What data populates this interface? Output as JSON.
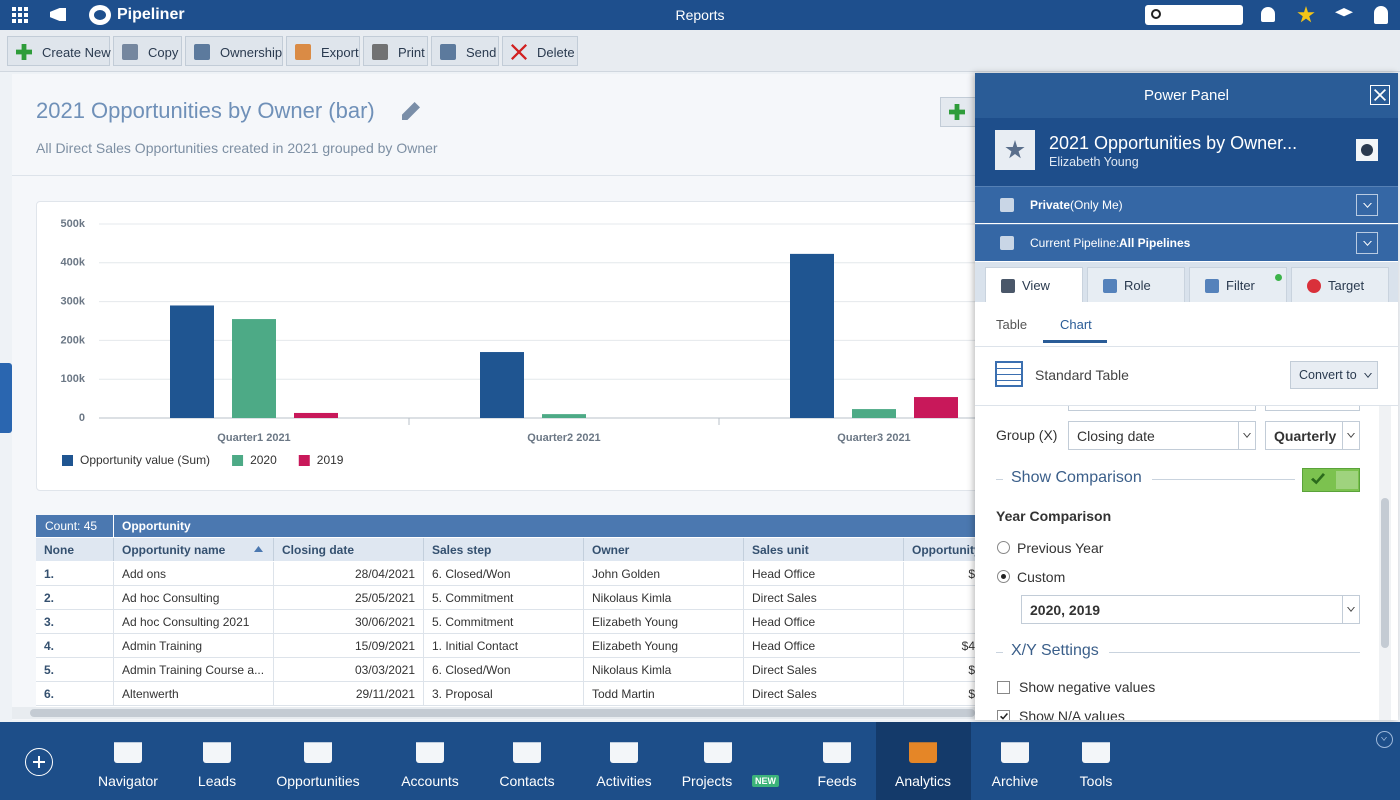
{
  "top_bar": {
    "app": "Pipeliner",
    "title": "Reports"
  },
  "toolbar": [
    "Create New",
    "Copy",
    "Ownership",
    "Export",
    "Print",
    "Send",
    "Delete"
  ],
  "report": {
    "title": "2021 Opportunities by Owner (bar)",
    "subtitle": "All Direct Sales Opportunities created in 2021 grouped by Owner"
  },
  "chart": {
    "type": "bar",
    "categories": [
      "Quarter1 2021",
      "Quarter2 2021",
      "Quarter3 2021"
    ],
    "series": [
      {
        "name": "Opportunity value (Sum)",
        "color": "#1f5591",
        "values": [
          290000,
          170000,
          423000
        ]
      },
      {
        "name": "2020",
        "color": "#4daa86",
        "values": [
          255000,
          10000,
          23000
        ]
      },
      {
        "name": "2019",
        "color": "#c8185a",
        "values": [
          13000,
          0,
          54000
        ]
      }
    ],
    "ylim": [
      0,
      500000
    ],
    "yticks": [
      0,
      {
        "value": 100000,
        "label": "100k"
      },
      {
        "value": 200000,
        "label": "200k"
      },
      {
        "value": 300000,
        "label": "300k"
      },
      {
        "value": 400000,
        "label": "400k"
      },
      {
        "value": 500000,
        "label": "500k"
      }
    ],
    "grid": true,
    "legend": "bottom-left"
  },
  "table": {
    "count": "Count: 45",
    "group": "Opportunity",
    "columns": [
      "None",
      "Opportunity name",
      "Closing date",
      "Sales step",
      "Owner",
      "Sales unit",
      "Opportunity"
    ],
    "rows": [
      [
        "1.",
        "Add ons",
        "28/04/2021",
        "6. Closed/Won",
        "John Golden",
        "Head Office",
        "$"
      ],
      [
        "2.",
        "Ad hoc Consulting",
        "25/05/2021",
        "5. Commitment",
        "Nikolaus Kimla",
        "Direct Sales"
      ],
      [
        "3.",
        "Ad hoc Consulting 2021",
        "30/06/2021",
        "5. Commitment",
        "Elizabeth Young",
        "Head Office"
      ],
      [
        "4.",
        "Admin Training",
        "15/09/2021",
        "1. Initial Contact",
        "Elizabeth Young",
        "Head Office",
        "$4"
      ],
      [
        "5.",
        "Admin Training Course a...",
        "03/03/2021",
        "6. Closed/Won",
        "Nikolaus Kimla",
        "Direct Sales",
        "$"
      ],
      [
        "6.",
        "Altenwerth",
        "29/11/2021",
        "3. Proposal",
        "Todd Martin",
        "Direct Sales",
        "$"
      ]
    ]
  },
  "power_panel": {
    "title": "Power Panel",
    "report_name": "2021 Opportunities by Owner...",
    "owner": "Elizabeth Young",
    "sharing": {
      "label": "Private",
      "detail": " (Only Me)"
    },
    "pipeline": {
      "label": "Current Pipeline: ",
      "value": "All Pipelines"
    },
    "tabs": [
      "View",
      "Role",
      "Filter",
      "Target"
    ],
    "subtabs": [
      "Table",
      "Chart"
    ],
    "table_type": "Standard Table",
    "convert": "Convert to",
    "group_label": "Group (X)",
    "group_field": "Closing date",
    "group_period": "Quarterly",
    "comparison": {
      "title": "Show Comparison",
      "enabled": true,
      "year_title": "Year Comparison",
      "options": [
        "Previous Year",
        "Custom"
      ],
      "selected": 1,
      "years": "2020, 2019"
    },
    "xy": {
      "title": "X/Y Settings",
      "options": [
        {
          "label": "Show negative values",
          "checked": false
        },
        {
          "label": "Show N/A values",
          "checked": true
        }
      ]
    }
  },
  "nav": [
    {
      "label": "Navigator"
    },
    {
      "label": "Leads"
    },
    {
      "label": "Opportunities"
    },
    {
      "label": "Accounts"
    },
    {
      "label": "Contacts"
    },
    {
      "label": "Activities"
    },
    {
      "label": "Projects",
      "badge": "NEW"
    },
    {
      "label": "Feeds"
    },
    {
      "label": "Analytics",
      "selected": true
    },
    {
      "label": "Archive"
    },
    {
      "label": "Tools"
    }
  ]
}
